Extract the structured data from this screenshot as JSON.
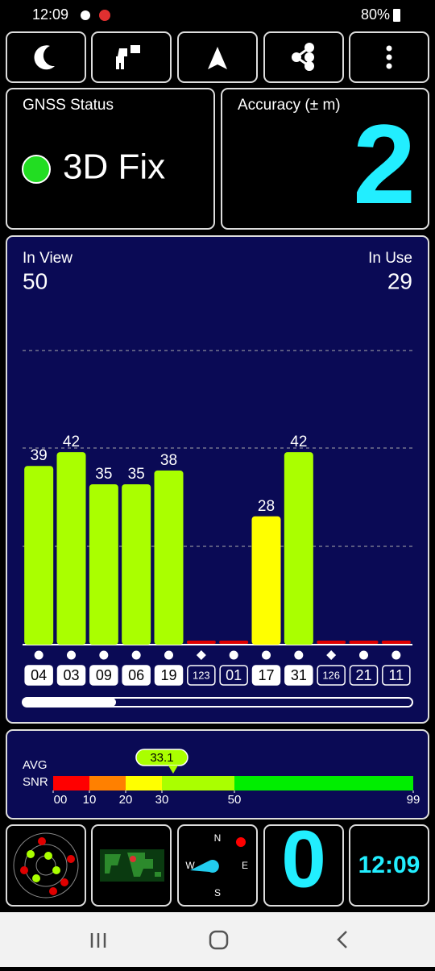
{
  "status_bar": {
    "time": "12:09",
    "battery": "80%"
  },
  "gnss_status": {
    "title": "GNSS Status",
    "value": "3D Fix"
  },
  "accuracy": {
    "title": "Accuracy (± m)",
    "value": "2"
  },
  "satellites": {
    "in_view_label": "In View",
    "in_view": "50",
    "in_use_label": "In Use",
    "in_use": "29",
    "chart_data": {
      "type": "bar",
      "ylim": [
        0,
        64
      ],
      "categories": [
        "04",
        "03",
        "09",
        "06",
        "19",
        "123",
        "01",
        "17",
        "31",
        "126",
        "21",
        "11"
      ],
      "values": [
        39,
        42,
        35,
        35,
        38,
        null,
        null,
        28,
        42,
        null,
        null,
        null
      ],
      "colors": [
        "#aaff00",
        "#aaff00",
        "#aaff00",
        "#aaff00",
        "#aaff00",
        "#e00000",
        "#e00000",
        "#ffff00",
        "#aaff00",
        "#e00000",
        "#e00000",
        "#e00000"
      ],
      "used": [
        true,
        true,
        true,
        true,
        true,
        false,
        false,
        true,
        true,
        false,
        false,
        false
      ],
      "marker": [
        "dot",
        "dot",
        "dot",
        "dot",
        "dot",
        "diamond",
        "dot",
        "dot",
        "dot",
        "diamond",
        "dot",
        "dot"
      ]
    }
  },
  "snr": {
    "avg_label": "AVG",
    "snr_label": "SNR",
    "chart_data": {
      "type": "gauge",
      "value": 33.1,
      "xticks": [
        {
          "value": 0,
          "label": "00"
        },
        10,
        20,
        30,
        50,
        99
      ],
      "segment_colors": [
        "#ff0000",
        "#ff8000",
        "#ffff00",
        "#aaff00",
        "#00ee00"
      ]
    }
  },
  "tiles": {
    "compass": {
      "n": "N",
      "e": "E",
      "s": "S",
      "w": "W"
    },
    "count": "0",
    "clock": "12:09"
  }
}
